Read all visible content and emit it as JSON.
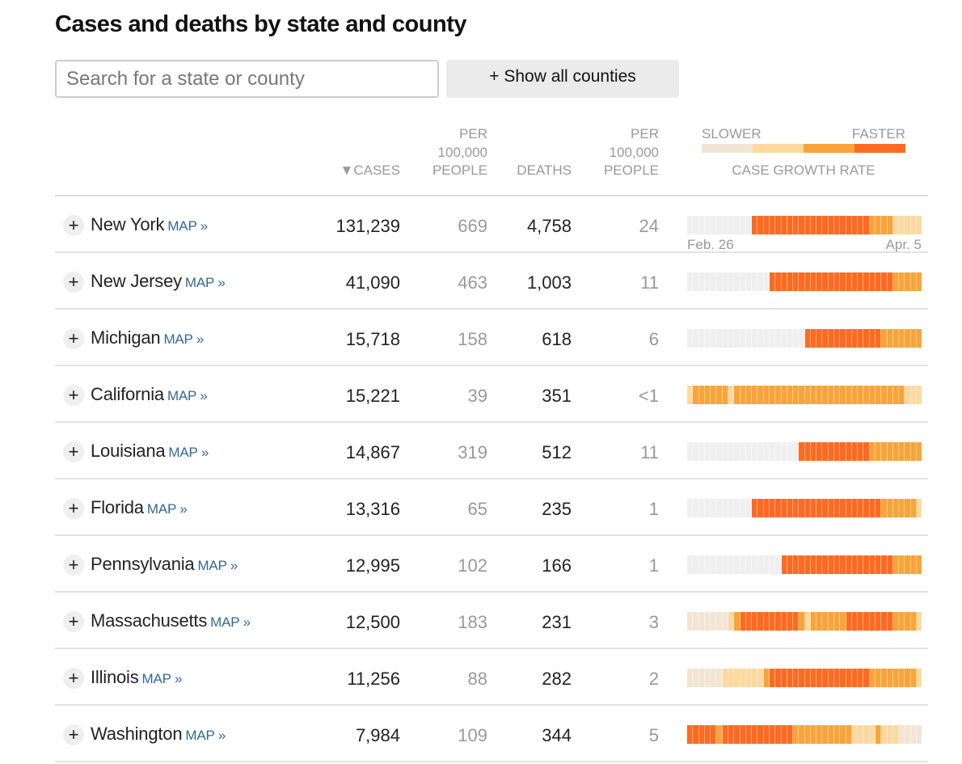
{
  "title": "Cases and deaths by state and county",
  "search": {
    "placeholder": "Search for a state or county"
  },
  "show_all_label": "+ Show all counties",
  "headers": {
    "cases": "▼CASES",
    "cases_per": [
      "PER",
      "100,000",
      "PEOPLE"
    ],
    "deaths": "DEATHS",
    "deaths_per": [
      "PER",
      "100,000",
      "PEOPLE"
    ],
    "legend_slower": "SLOWER",
    "legend_faster": "FASTER",
    "legend_title": "CASE GROWTH RATE"
  },
  "colors": [
    "#efefef",
    "#f3e5d6",
    "#fdd9a0",
    "#f8a43a",
    "#fd6a21"
  ],
  "axis": {
    "start": "Feb. 26",
    "end": "Apr. 5"
  },
  "expand_label": "+",
  "map_label": "MAP »",
  "rows": [
    {
      "state": "New York",
      "cases": "131,239",
      "cases_per": "669",
      "deaths": "4,758",
      "deaths_per": "24",
      "growth": "0000000000044444444444444444444333322222"
    },
    {
      "state": "New Jersey",
      "cases": "41,090",
      "cases_per": "463",
      "deaths": "1,003",
      "deaths_per": "11",
      "growth": "0000000000000044444444444444444444433333"
    },
    {
      "state": "Michigan",
      "cases": "15,718",
      "cases_per": "158",
      "deaths": "618",
      "deaths_per": "6",
      "growth": "0000000000000000000044444444444443333333"
    },
    {
      "state": "California",
      "cases": "15,221",
      "cases_per": "39",
      "deaths": "351",
      "deaths_per": "<1",
      "growth": "2333333233333333333333333333333333333222"
    },
    {
      "state": "Louisiana",
      "cases": "14,867",
      "cases_per": "319",
      "deaths": "512",
      "deaths_per": "11",
      "growth": "0000000000000000000444444444444333333333"
    },
    {
      "state": "Florida",
      "cases": "13,316",
      "cases_per": "65",
      "deaths": "235",
      "deaths_per": "1",
      "growth": "0000000000044444444444444444444443333332"
    },
    {
      "state": "Pennsylvania",
      "cases": "12,995",
      "cases_per": "102",
      "deaths": "166",
      "deaths_per": "1",
      "growth": "0000000000000000444444444444444444433333"
    },
    {
      "state": "Massachusetts",
      "cases": "12,500",
      "cases_per": "183",
      "deaths": "231",
      "deaths_per": "3",
      "growth": "1111111234444444444323333334444444433332"
    },
    {
      "state": "Illinois",
      "cases": "11,256",
      "cases_per": "88",
      "deaths": "282",
      "deaths_per": "2",
      "growth": "1111112222222344444444444444444333333332"
    },
    {
      "state": "Washington",
      "cases": "7,984",
      "cases_per": "109",
      "deaths": "344",
      "deaths_per": "5",
      "growth": "4444434444444444443333333333222232221111"
    }
  ]
}
